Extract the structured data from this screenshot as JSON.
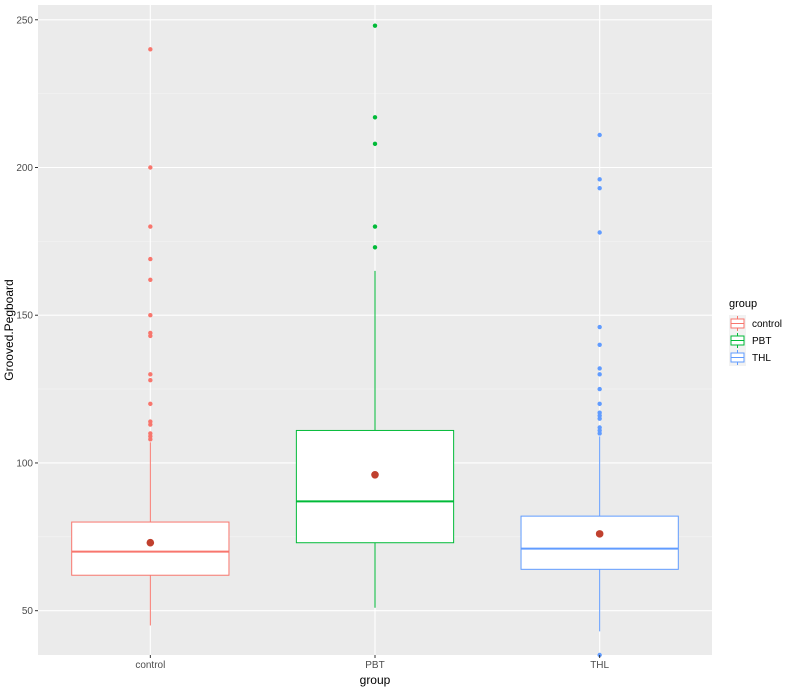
{
  "chart_data": {
    "type": "boxplot",
    "xlabel": "group",
    "ylabel": "Grooved.Pegboard",
    "ylim": [
      35,
      255
    ],
    "yticks": [
      50,
      100,
      150,
      200,
      250
    ],
    "categories": [
      "control",
      "PBT",
      "THL"
    ],
    "grid": true,
    "legend": {
      "title": "group",
      "placement": "right",
      "entries": [
        "control",
        "PBT",
        "THL"
      ]
    },
    "mean_color": "#c0402e",
    "series": [
      {
        "category": "control",
        "color": "#F8766D",
        "whisker_low": 45,
        "q1": 62,
        "median": 70,
        "q3": 80,
        "whisker_high": 107,
        "mean": 73,
        "outliers": [
          240,
          200,
          180,
          169,
          162,
          150,
          144,
          143,
          130,
          128,
          120,
          114,
          113,
          110,
          109,
          108
        ]
      },
      {
        "category": "PBT",
        "color": "#00BA38",
        "whisker_low": 51,
        "q1": 73,
        "median": 87,
        "q3": 111,
        "whisker_high": 165,
        "mean": 96,
        "outliers": [
          248,
          217,
          208,
          180,
          173
        ]
      },
      {
        "category": "THL",
        "color": "#619CFF",
        "whisker_low": 43,
        "q1": 64,
        "median": 71,
        "q3": 82,
        "whisker_high": 109,
        "mean": 76,
        "outliers": [
          211,
          196,
          193,
          178,
          146,
          140,
          132,
          130,
          125,
          120,
          117,
          116,
          115,
          112,
          111,
          110,
          35
        ]
      }
    ]
  }
}
